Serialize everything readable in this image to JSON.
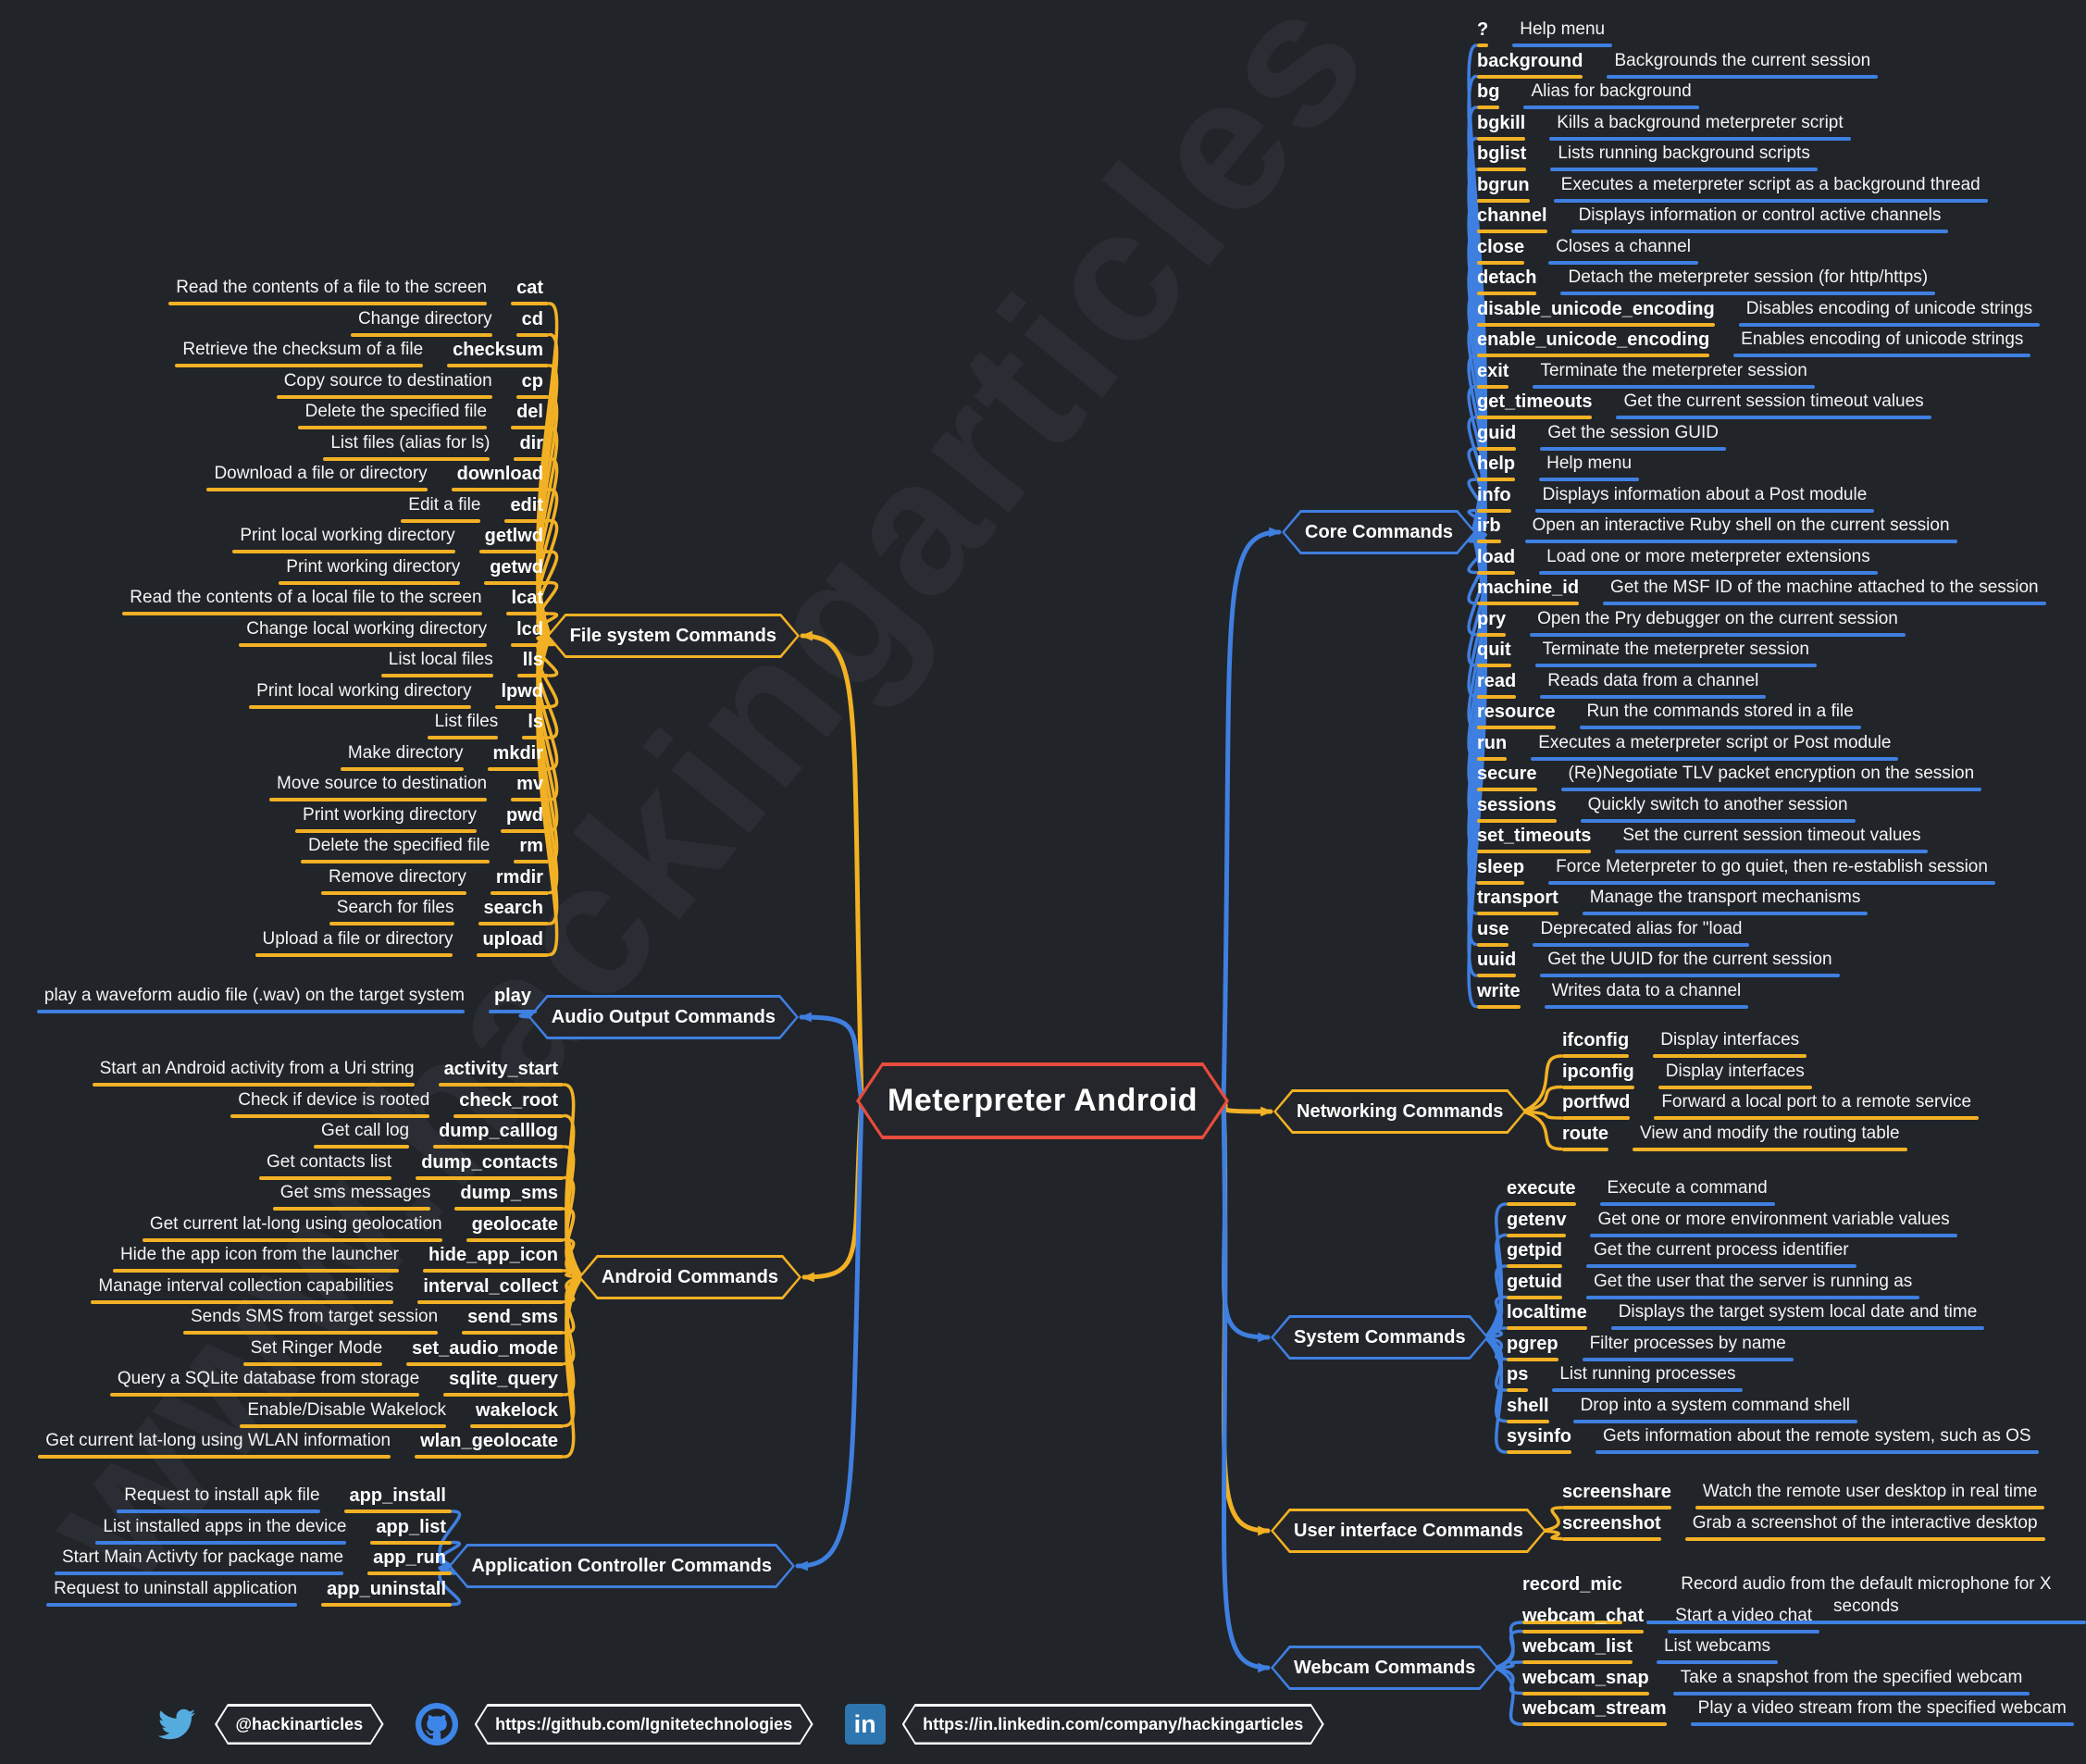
{
  "title": "Meterpreter Android",
  "watermark": "www.hackingarticles",
  "colors": {
    "yellow": "#F2B124",
    "blue": "#3F7FE0",
    "red": "#E74C3C",
    "background": "#212429",
    "text": "#FFFFFF"
  },
  "branches": {
    "filesystem": {
      "label": "File system Commands",
      "accent": "yellow",
      "underline": [
        "yellow",
        "yellow"
      ],
      "items": [
        {
          "c": "cat",
          "d": "Read the contents of a file to the screen"
        },
        {
          "c": "cd",
          "d": "Change directory"
        },
        {
          "c": "checksum",
          "d": "Retrieve the checksum of a file"
        },
        {
          "c": "cp",
          "d": "Copy source to destination"
        },
        {
          "c": "del",
          "d": "Delete the specified file"
        },
        {
          "c": "dir",
          "d": "List files (alias for ls)"
        },
        {
          "c": "download",
          "d": "Download a file or directory"
        },
        {
          "c": "edit",
          "d": "Edit a file"
        },
        {
          "c": "getlwd",
          "d": "Print local working directory"
        },
        {
          "c": "getwd",
          "d": "Print working directory"
        },
        {
          "c": "lcat",
          "d": "Read the contents of a local file to the screen"
        },
        {
          "c": "lcd",
          "d": "Change local working directory"
        },
        {
          "c": "lls",
          "d": "List local files"
        },
        {
          "c": "lpwd",
          "d": "Print local working directory"
        },
        {
          "c": "ls",
          "d": "List files"
        },
        {
          "c": "mkdir",
          "d": "Make directory"
        },
        {
          "c": "mv",
          "d": "Move source to destination"
        },
        {
          "c": "pwd",
          "d": "Print working directory"
        },
        {
          "c": "rm",
          "d": "Delete the specified file"
        },
        {
          "c": "rmdir",
          "d": "Remove directory"
        },
        {
          "c": "search",
          "d": "Search for files"
        },
        {
          "c": "upload",
          "d": "Upload a file or directory"
        }
      ]
    },
    "audiooutput": {
      "label": "Audio Output Commands",
      "accent": "blue",
      "underline": [
        "blue",
        "blue"
      ],
      "items": [
        {
          "c": "play",
          "d": "play a waveform audio file (.wav) on the target system"
        }
      ]
    },
    "android": {
      "label": "Android Commands",
      "accent": "yellow",
      "underline": [
        "yellow",
        "yellow"
      ],
      "items": [
        {
          "c": "activity_start",
          "d": "Start an Android activity from a Uri string"
        },
        {
          "c": "check_root",
          "d": "Check if device is rooted"
        },
        {
          "c": "dump_calllog",
          "d": "Get call log"
        },
        {
          "c": "dump_contacts",
          "d": "Get contacts list"
        },
        {
          "c": "dump_sms",
          "d": "Get sms messages"
        },
        {
          "c": "geolocate",
          "d": "Get current lat-long using geolocation"
        },
        {
          "c": "hide_app_icon",
          "d": "Hide the app icon from the launcher"
        },
        {
          "c": "interval_collect",
          "d": "Manage interval collection capabilities"
        },
        {
          "c": "send_sms",
          "d": "Sends SMS from target session"
        },
        {
          "c": "set_audio_mode",
          "d": "Set Ringer Mode"
        },
        {
          "c": "sqlite_query",
          "d": "Query a SQLite database from storage"
        },
        {
          "c": "wakelock",
          "d": "Enable/Disable Wakelock"
        },
        {
          "c": "wlan_geolocate",
          "d": "Get current lat-long using WLAN information"
        }
      ]
    },
    "appcontroller": {
      "label": "Application Controller Commands",
      "accent": "blue",
      "underline": [
        "blue",
        "yellow"
      ],
      "items": [
        {
          "c": "app_install",
          "d": "Request to install apk file"
        },
        {
          "c": "app_list",
          "d": "List installed apps in the device"
        },
        {
          "c": "app_run",
          "d": "Start Main Activty for package name"
        },
        {
          "c": "app_uninstall",
          "d": "Request to uninstall application"
        }
      ]
    },
    "core": {
      "label": "Core Commands",
      "accent": "blue",
      "underline": [
        "yellow",
        "blue"
      ],
      "items": [
        {
          "c": "?",
          "d": "Help menu"
        },
        {
          "c": "background",
          "d": "Backgrounds the current session"
        },
        {
          "c": "bg",
          "d": "Alias for background"
        },
        {
          "c": "bgkill",
          "d": "Kills a background meterpreter script"
        },
        {
          "c": "bglist",
          "d": "Lists running background scripts"
        },
        {
          "c": "bgrun",
          "d": "Executes a meterpreter script as a background thread"
        },
        {
          "c": "channel",
          "d": "Displays information or control active channels"
        },
        {
          "c": "close",
          "d": "Closes a channel"
        },
        {
          "c": "detach",
          "d": "Detach the meterpreter session (for http/https)"
        },
        {
          "c": "disable_unicode_encoding",
          "d": "Disables encoding of unicode strings"
        },
        {
          "c": "enable_unicode_encoding",
          "d": "Enables encoding of unicode strings"
        },
        {
          "c": "exit",
          "d": "Terminate the meterpreter session"
        },
        {
          "c": "get_timeouts",
          "d": "Get the current session timeout values"
        },
        {
          "c": "guid",
          "d": "Get the session GUID"
        },
        {
          "c": "help",
          "d": "Help menu"
        },
        {
          "c": "info",
          "d": "Displays information about a Post module"
        },
        {
          "c": "irb",
          "d": "Open an interactive Ruby shell on the current session"
        },
        {
          "c": "load",
          "d": "Load one or more meterpreter extensions"
        },
        {
          "c": "machine_id",
          "d": "Get the MSF ID of the machine attached to the session"
        },
        {
          "c": "pry",
          "d": "Open the Pry debugger on the current session"
        },
        {
          "c": "quit",
          "d": "Terminate the meterpreter session"
        },
        {
          "c": "read",
          "d": "Reads data from a channel"
        },
        {
          "c": "resource",
          "d": "Run the commands stored in a file"
        },
        {
          "c": "run",
          "d": "Executes a meterpreter script or Post module"
        },
        {
          "c": "secure",
          "d": "(Re)Negotiate TLV packet encryption on the session"
        },
        {
          "c": "sessions",
          "d": "Quickly switch to another session"
        },
        {
          "c": "set_timeouts",
          "d": "Set the current session timeout values"
        },
        {
          "c": "sleep",
          "d": "Force Meterpreter to go quiet, then re-establish session"
        },
        {
          "c": "transport",
          "d": "Manage the transport mechanisms"
        },
        {
          "c": "use",
          "d": "Deprecated alias for \"load"
        },
        {
          "c": "uuid",
          "d": "Get the UUID for the current session"
        },
        {
          "c": "write",
          "d": "Writes data to a channel"
        }
      ]
    },
    "networking": {
      "label": "Networking Commands",
      "accent": "yellow",
      "underline": [
        "yellow",
        "yellow"
      ],
      "items": [
        {
          "c": "ifconfig",
          "d": "Display interfaces"
        },
        {
          "c": "ipconfig",
          "d": "Display interfaces"
        },
        {
          "c": "portfwd",
          "d": "Forward a local port to a remote service"
        },
        {
          "c": "route",
          "d": "View and modify the routing table"
        }
      ]
    },
    "system": {
      "label": "System Commands",
      "accent": "blue",
      "underline": [
        "yellow",
        "blue"
      ],
      "items": [
        {
          "c": "execute",
          "d": "Execute a command"
        },
        {
          "c": "getenv",
          "d": "Get one or more environment variable values"
        },
        {
          "c": "getpid",
          "d": "Get the current process identifier"
        },
        {
          "c": "getuid",
          "d": "Get the user that the server is running as"
        },
        {
          "c": "localtime",
          "d": "Displays the target system local date and time"
        },
        {
          "c": "pgrep",
          "d": "Filter processes by name"
        },
        {
          "c": "ps",
          "d": "List running processes"
        },
        {
          "c": "shell",
          "d": "Drop into a system command shell"
        },
        {
          "c": "sysinfo",
          "d": "Gets information about the remote system, such as OS"
        }
      ]
    },
    "userinterface": {
      "label": "User interface Commands",
      "accent": "yellow",
      "underline": [
        "yellow",
        "yellow"
      ],
      "items": [
        {
          "c": "screenshare",
          "d": "Watch the remote user desktop in real time"
        },
        {
          "c": "screenshot",
          "d": "Grab a screenshot of the interactive desktop"
        }
      ]
    },
    "webcam": {
      "label": "Webcam Commands",
      "accent": "blue",
      "underline": [
        "yellow",
        "blue"
      ],
      "items": [
        {
          "c": "record_mic",
          "d": "Record audio from the default microphone for X seconds"
        },
        {
          "c": "webcam_chat",
          "d": "Start a video chat"
        },
        {
          "c": "webcam_list",
          "d": "List webcams"
        },
        {
          "c": "webcam_snap",
          "d": "Take a snapshot from the specified webcam"
        },
        {
          "c": "webcam_stream",
          "d": "Play a video stream from the specified webcam"
        }
      ]
    }
  },
  "footer": {
    "twitter": "@hackinarticles",
    "github": "https://github.com/Ignitetechnologies",
    "linkedin": "https://in.linkedin.com/company/hackingarticles",
    "linkedin_glyph": "in"
  }
}
